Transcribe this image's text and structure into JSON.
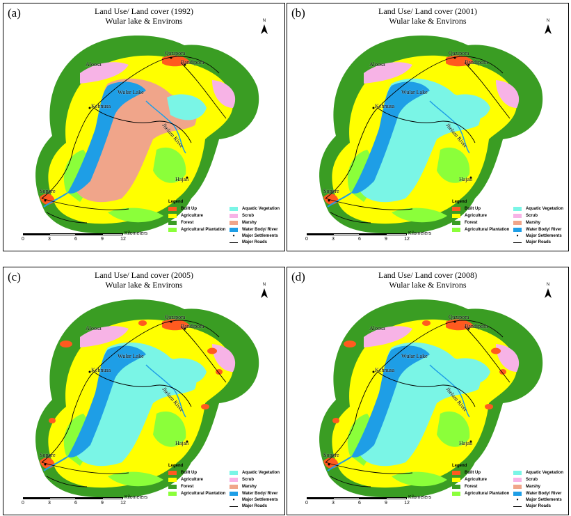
{
  "panels": [
    {
      "label": "(a)",
      "title1": "Land Use/ Land cover (1992)",
      "title2": "Wular lake & Environs"
    },
    {
      "label": "(b)",
      "title1": "Land Use/ Land cover (2001)",
      "title2": "Wular lake & Environs"
    },
    {
      "label": "(c)",
      "title1": "Land Use/ Land cover (2005)",
      "title2": "Wular lake & Environs"
    },
    {
      "label": "(d)",
      "title1": "Land Use/ Land cover (2008)",
      "title2": "Wular lake & Environs"
    }
  ],
  "north": "N",
  "legend": {
    "title": "Legend",
    "items": [
      {
        "label": "Built Up",
        "color": "#ff5a1f"
      },
      {
        "label": "Agriculture",
        "color": "#ffff00"
      },
      {
        "label": "Forest",
        "color": "#3a9d23"
      },
      {
        "label": "Agricultural Plantation",
        "color": "#8bff3a"
      },
      {
        "label": "Aquatic Vegetation",
        "color": "#7af5e6"
      },
      {
        "label": "Scrub",
        "color": "#f7b3e6"
      },
      {
        "label": "Marshy",
        "color": "#f0a58a"
      },
      {
        "label": "Water Body/ River",
        "color": "#1e9ee6"
      },
      {
        "label": "Major Settlements",
        "color": "#000000"
      },
      {
        "label": "Major Roads",
        "color": "#000000"
      }
    ]
  },
  "scale": {
    "ticks": [
      "0",
      "3",
      "6",
      "9",
      "12"
    ],
    "unit": "Kilometers"
  },
  "places": {
    "qazipora": "Qazipora",
    "bandipora": "Bandipora",
    "aloosa": "Aloosa",
    "wular_lake": "Wular Lake",
    "kehnusa": "Kehnusa",
    "jhelum_river": "Jhelum River",
    "hajan": "Hajan",
    "sopore": "Sopore"
  }
}
